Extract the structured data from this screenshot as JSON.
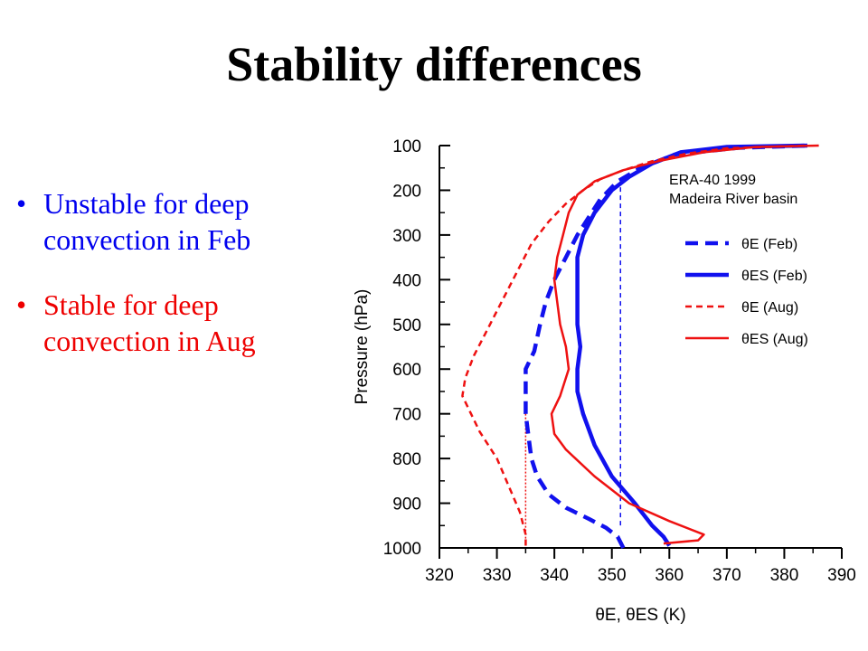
{
  "slide": {
    "title": "Stability differences",
    "bullets": [
      {
        "text": "Unstable for deep convection in Feb",
        "color": "#0000ee"
      },
      {
        "text": "Stable for deep convection in Aug",
        "color": "#ee0000"
      }
    ]
  },
  "chart_data": {
    "type": "line",
    "title": "",
    "xlabel": "θE, θES (K)",
    "ylabel": "Pressure (hPa)",
    "xlim": [
      320,
      390
    ],
    "ylim": [
      1000,
      100
    ],
    "y_inverted": true,
    "grid": false,
    "x_ticks": [
      320,
      330,
      340,
      350,
      360,
      370,
      380,
      390
    ],
    "y_ticks": [
      100,
      200,
      300,
      400,
      500,
      600,
      700,
      800,
      900,
      1000
    ],
    "annotation": [
      "ERA-40 1999",
      "Madeira River basin"
    ],
    "legend_position": "right",
    "series": [
      {
        "name": "θE (Feb)",
        "color": "#1111ee",
        "style": "dashed-thick",
        "points": [
          [
            352,
            1000
          ],
          [
            351,
            975
          ],
          [
            349,
            955
          ],
          [
            346,
            935
          ],
          [
            342,
            910
          ],
          [
            339,
            880
          ],
          [
            337,
            840
          ],
          [
            336,
            800
          ],
          [
            335.5,
            750
          ],
          [
            335,
            700
          ],
          [
            335,
            650
          ],
          [
            335,
            600
          ],
          [
            336.5,
            560
          ],
          [
            337.5,
            500
          ],
          [
            338.5,
            450
          ],
          [
            340,
            400
          ],
          [
            342,
            350
          ],
          [
            344,
            300
          ],
          [
            346,
            260
          ],
          [
            348,
            220
          ],
          [
            351,
            180
          ],
          [
            355,
            150
          ],
          [
            361,
            120
          ],
          [
            372,
            105
          ],
          [
            384,
            100
          ]
        ]
      },
      {
        "name": "θES (Feb)",
        "color": "#1111ee",
        "style": "solid-thick",
        "points": [
          [
            360,
            995
          ],
          [
            359,
            975
          ],
          [
            357,
            950
          ],
          [
            354,
            900
          ],
          [
            350,
            840
          ],
          [
            347,
            770
          ],
          [
            345,
            700
          ],
          [
            344,
            650
          ],
          [
            344,
            600
          ],
          [
            344.5,
            550
          ],
          [
            344,
            500
          ],
          [
            344,
            450
          ],
          [
            344,
            400
          ],
          [
            344,
            350
          ],
          [
            345,
            300
          ],
          [
            347,
            250
          ],
          [
            350,
            200
          ],
          [
            353,
            170
          ],
          [
            357,
            140
          ],
          [
            362,
            115
          ],
          [
            370,
            103
          ],
          [
            384,
            100
          ]
        ]
      },
      {
        "name": "θE (Aug)",
        "color": "#ee1111",
        "style": "dashed-thin",
        "points": [
          [
            335,
            995
          ],
          [
            335,
            970
          ],
          [
            334,
            920
          ],
          [
            332,
            860
          ],
          [
            330,
            800
          ],
          [
            327,
            740
          ],
          [
            324,
            660
          ],
          [
            324.5,
            620
          ],
          [
            326,
            570
          ],
          [
            328,
            520
          ],
          [
            330,
            470
          ],
          [
            332,
            420
          ],
          [
            334,
            370
          ],
          [
            336,
            320
          ],
          [
            339,
            270
          ],
          [
            342,
            230
          ],
          [
            345,
            200
          ],
          [
            348,
            175
          ],
          [
            352,
            155
          ],
          [
            357,
            135
          ],
          [
            363,
            118
          ],
          [
            370,
            106
          ],
          [
            384,
            100
          ]
        ]
      },
      {
        "name": "θES (Aug)",
        "color": "#ee1111",
        "style": "solid-thin",
        "points": [
          [
            359,
            990
          ],
          [
            365,
            983
          ],
          [
            366,
            970
          ],
          [
            360,
            940
          ],
          [
            353,
            900
          ],
          [
            347,
            840
          ],
          [
            342,
            780
          ],
          [
            340,
            745
          ],
          [
            339.5,
            700
          ],
          [
            341,
            660
          ],
          [
            342.5,
            600
          ],
          [
            342,
            550
          ],
          [
            341,
            500
          ],
          [
            340.5,
            450
          ],
          [
            340,
            400
          ],
          [
            340.5,
            350
          ],
          [
            341.5,
            300
          ],
          [
            342.5,
            250
          ],
          [
            344,
            210
          ],
          [
            347,
            180
          ],
          [
            352,
            155
          ],
          [
            358,
            135
          ],
          [
            366,
            115
          ],
          [
            375,
            103
          ],
          [
            386,
            100
          ]
        ]
      }
    ],
    "reference_lines": [
      {
        "series": "Feb",
        "x": 351.5,
        "p_from": 175,
        "p_to": 950,
        "color": "#1111ee",
        "style": "dashed"
      },
      {
        "series": "Aug",
        "x": 335,
        "p_from": 700,
        "p_to": 995,
        "color": "#ee1111",
        "style": "dotted"
      }
    ]
  }
}
